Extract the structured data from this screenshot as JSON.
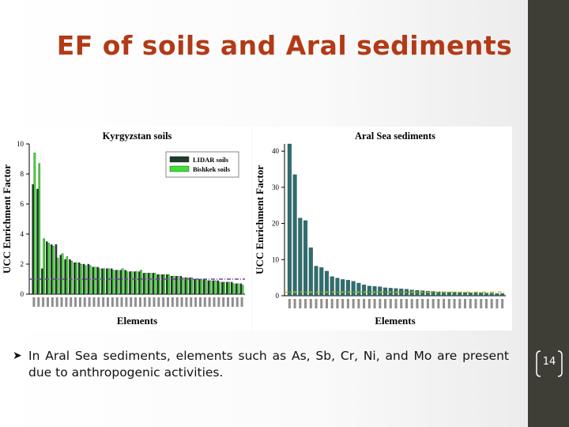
{
  "slide": {
    "title": "EF of soils and Aral sediments",
    "bullet": "In Aral Sea sediments, elements such as As, Sb, Cr, Ni, and Mo are present due to anthropogenic activities.",
    "page_number": "14"
  },
  "colors": {
    "title": "#b23a16",
    "sidebar": "#3e3e36",
    "lidar": "#1f3d2a",
    "bishkek": "#3fe030",
    "aral": "#2f6e70",
    "reference_line": "#7b3fa0",
    "aral_reference_line": "#b8c400"
  },
  "chart_data": [
    {
      "type": "bar",
      "title": "Kyrgyzstan soils",
      "xlabel": "Elements",
      "ylabel": "UCC Enrichment Factor",
      "ylim": [
        0,
        10
      ],
      "yticks": [
        0,
        2,
        4,
        6,
        8,
        10
      ],
      "grid": false,
      "legend_position": "top-right",
      "reference_line": 1,
      "series": [
        {
          "name": "LIDAR soils",
          "values": [
            7.3,
            7.0,
            1.7,
            3.5,
            3.3,
            3.3,
            2.6,
            2.3,
            2.3,
            2.1,
            2.1,
            2.0,
            2.0,
            1.8,
            1.8,
            1.7,
            1.7,
            1.7,
            1.6,
            1.6,
            1.6,
            1.5,
            1.5,
            1.5,
            1.4,
            1.4,
            1.4,
            1.3,
            1.3,
            1.3,
            1.2,
            1.2,
            1.2,
            1.1,
            1.1,
            1.0,
            1.0,
            1.0,
            0.9,
            0.9,
            0.9,
            0.8,
            0.8,
            0.8,
            0.7,
            0.7
          ]
        },
        {
          "name": "Bishkek soils",
          "values": [
            9.4,
            8.7,
            3.7,
            3.4,
            3.2,
            2.4,
            2.7,
            2.5,
            2.2,
            2.1,
            2.0,
            1.9,
            1.9,
            1.8,
            1.7,
            1.7,
            1.7,
            1.6,
            1.6,
            1.7,
            1.5,
            1.5,
            1.5,
            1.6,
            1.4,
            1.4,
            1.4,
            1.3,
            1.3,
            1.3,
            1.2,
            1.2,
            1.1,
            1.1,
            1.1,
            1.0,
            1.0,
            1.0,
            0.9,
            0.9,
            0.8,
            0.8,
            0.8,
            0.7,
            0.7,
            0.6
          ]
        }
      ]
    },
    {
      "type": "bar",
      "title": "Aral Sea sediments",
      "xlabel": "Elements",
      "ylabel": "UCC Enrichment Factor",
      "ylim": [
        0,
        42
      ],
      "yticks": [
        0,
        10,
        20,
        30,
        40
      ],
      "grid": false,
      "reference_line": 1,
      "series": [
        {
          "name": "",
          "values": [
            42,
            33.5,
            21.5,
            20.8,
            13.3,
            8.2,
            7.8,
            6.8,
            5.3,
            4.9,
            4.5,
            4.3,
            4.0,
            3.5,
            3.0,
            2.7,
            2.6,
            2.5,
            2.2,
            2.1,
            2.0,
            1.9,
            1.8,
            1.6,
            1.5,
            1.4,
            1.3,
            1.2,
            1.1,
            1.1,
            1.0,
            1.0,
            0.9,
            0.9,
            0.8,
            0.8,
            0.8,
            0.7,
            0.7,
            0.6,
            0.6
          ]
        }
      ]
    }
  ]
}
